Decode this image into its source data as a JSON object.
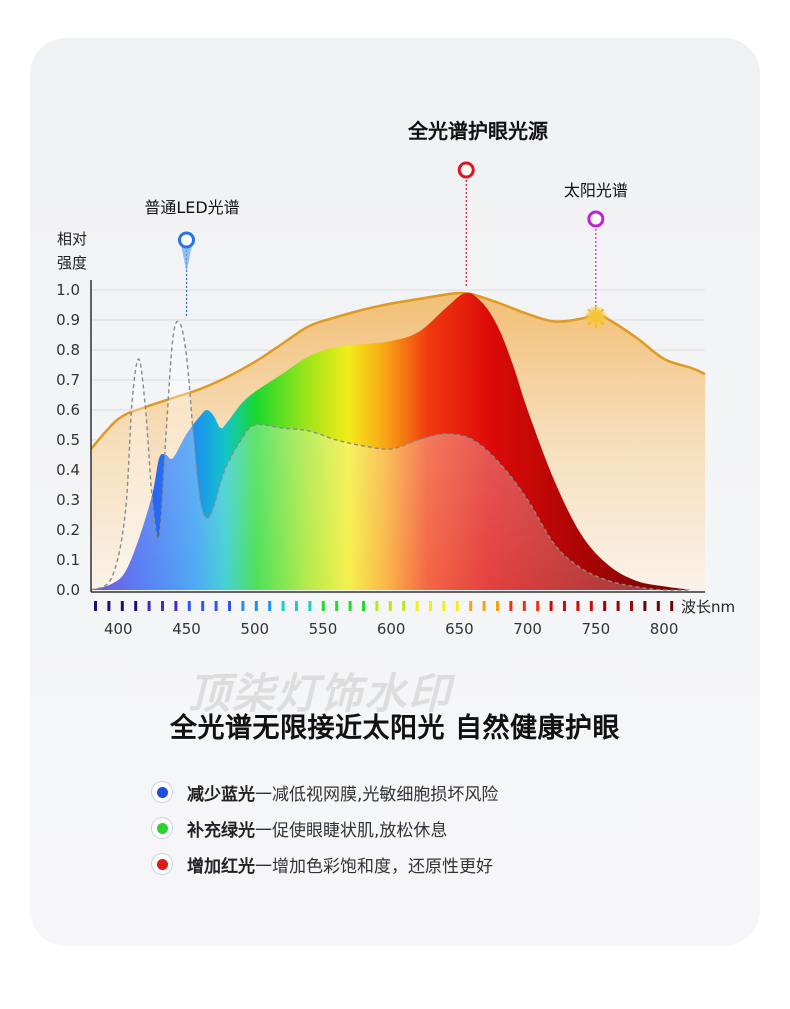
{
  "headline": "全光谱无限接近太阳光 自然健康护眼",
  "watermark": "顶柒灯饰水印",
  "benefits": [
    {
      "title": "减少蓝光",
      "text": "一减低视网膜,光敏细胞损坏风险",
      "color": "#1a4fe0"
    },
    {
      "title": "补充绿光",
      "text": "一促使眼睫状肌,放松休息",
      "color": "#2ad32a"
    },
    {
      "title": "增加红光",
      "text": "一增加色彩饱和度，还原性更好",
      "color": "#e01818"
    }
  ],
  "chart_data": {
    "type": "area",
    "ylabel": [
      "相对",
      "强度"
    ],
    "xlabel": "波长nm",
    "xlim": [
      380,
      830
    ],
    "ylim": [
      0,
      1.0
    ],
    "xticks": [
      400,
      450,
      500,
      550,
      600,
      650,
      700,
      750,
      800
    ],
    "yticks": [
      "0.0",
      "0.1",
      "0.2",
      "0.3",
      "0.4",
      "0.5",
      "0.6",
      "0.7",
      "0.8",
      "0.9",
      "1.0"
    ],
    "grid": true,
    "annotations": [
      {
        "label": "全光谱护眼光源",
        "x": 655,
        "y": 1.0,
        "color": "#e0141e"
      },
      {
        "label": "太阳光谱",
        "x": 750,
        "y": 0.91,
        "color": "#c020d8"
      },
      {
        "label": "普通LED光谱",
        "x": 450,
        "y": 0.89,
        "color": "#2a72e8"
      }
    ],
    "series": [
      {
        "name": "太阳光谱",
        "x": [
          380,
          400,
          420,
          440,
          460,
          480,
          500,
          520,
          540,
          560,
          580,
          600,
          620,
          640,
          650,
          660,
          680,
          700,
          720,
          740,
          750,
          760,
          780,
          800,
          820,
          830
        ],
        "y": [
          0.47,
          0.57,
          0.61,
          0.64,
          0.67,
          0.71,
          0.76,
          0.82,
          0.88,
          0.91,
          0.935,
          0.955,
          0.97,
          0.985,
          0.99,
          0.985,
          0.955,
          0.92,
          0.895,
          0.905,
          0.92,
          0.9,
          0.84,
          0.77,
          0.74,
          0.72
        ],
        "color": "#e8a020"
      },
      {
        "name": "全光谱护眼光源",
        "x": [
          380,
          395,
          405,
          415,
          425,
          430,
          435,
          440,
          450,
          460,
          465,
          470,
          475,
          480,
          490,
          500,
          520,
          540,
          560,
          580,
          600,
          620,
          640,
          650,
          655,
          660,
          670,
          680,
          690,
          700,
          720,
          740,
          760,
          780,
          800,
          820
        ],
        "y": [
          0.0,
          0.02,
          0.06,
          0.17,
          0.32,
          0.44,
          0.45,
          0.44,
          0.52,
          0.58,
          0.6,
          0.58,
          0.54,
          0.56,
          0.62,
          0.66,
          0.72,
          0.78,
          0.81,
          0.82,
          0.83,
          0.86,
          0.94,
          0.98,
          0.99,
          0.985,
          0.94,
          0.86,
          0.74,
          0.6,
          0.36,
          0.18,
          0.08,
          0.03,
          0.012,
          0.0
        ]
      },
      {
        "name": "普通LED光谱",
        "x": [
          380,
          395,
          405,
          410,
          415,
          420,
          425,
          430,
          435,
          440,
          445,
          450,
          455,
          460,
          465,
          470,
          475,
          480,
          490,
          500,
          520,
          540,
          560,
          580,
          600,
          620,
          640,
          660,
          680,
          700,
          720,
          740,
          760,
          780,
          800,
          820
        ],
        "y": [
          0.0,
          0.04,
          0.25,
          0.62,
          0.77,
          0.6,
          0.3,
          0.18,
          0.52,
          0.84,
          0.89,
          0.78,
          0.52,
          0.3,
          0.24,
          0.28,
          0.36,
          0.42,
          0.5,
          0.55,
          0.54,
          0.53,
          0.5,
          0.48,
          0.47,
          0.5,
          0.52,
          0.5,
          0.42,
          0.3,
          0.15,
          0.07,
          0.03,
          0.01,
          0.0,
          0.0
        ],
        "color": "#999999"
      }
    ],
    "spectrum_colors": [
      "#1c1078",
      "#4a25c8",
      "#2d57f0",
      "#1e90f0",
      "#1ad0c0",
      "#22dc28",
      "#b8e818",
      "#f4ee18",
      "#f8a010",
      "#f03010",
      "#d40808",
      "#9a0404",
      "#6e0202"
    ]
  }
}
